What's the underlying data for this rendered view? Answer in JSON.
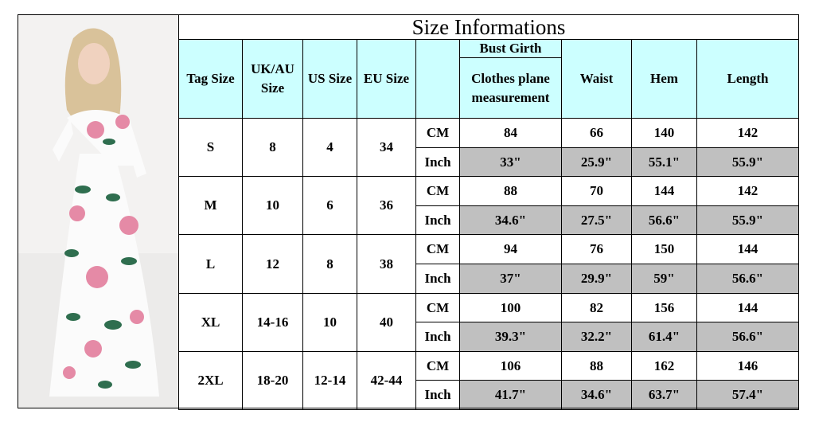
{
  "title": "Size Informations",
  "headers": [
    "Tag Size",
    "UK/AU Size",
    "US Size",
    "EU Size",
    "Bust Girth",
    "Clothes plane measurement",
    "Waist",
    "Hem",
    "Length"
  ],
  "sizes": [
    {
      "tag": "S",
      "uk_au": "8",
      "us": "4",
      "eu": "34",
      "rows": [
        {
          "unit": "CM",
          "values": [
            "84",
            "66",
            "140",
            "142"
          ]
        },
        {
          "unit": "Inch",
          "values": [
            "33\"",
            "25.9\"",
            "55.1\"",
            "55.9\""
          ]
        }
      ]
    },
    {
      "tag": "M",
      "uk_au": "10",
      "us": "6",
      "eu": "36",
      "rows": [
        {
          "unit": "CM",
          "values": [
            "88",
            "70",
            "144",
            "142"
          ]
        },
        {
          "unit": "Inch",
          "values": [
            "34.6\"",
            "27.5\"",
            "56.6\"",
            "55.9\""
          ]
        }
      ]
    },
    {
      "tag": "L",
      "uk_au": "12",
      "us": "8",
      "eu": "38",
      "rows": [
        {
          "unit": "CM",
          "values": [
            "94",
            "76",
            "150",
            "144"
          ]
        },
        {
          "unit": "Inch",
          "values": [
            "37\"",
            "29.9\"",
            "59\"",
            "56.6\""
          ]
        }
      ]
    },
    {
      "tag": "XL",
      "uk_au": "14-16",
      "us": "10",
      "eu": "40",
      "rows": [
        {
          "unit": "CM",
          "values": [
            "100",
            "82",
            "156",
            "144"
          ]
        },
        {
          "unit": "Inch",
          "values": [
            "39.3\"",
            "32.2\"",
            "61.4\"",
            "56.6\""
          ]
        }
      ]
    },
    {
      "tag": "2XL",
      "uk_au": "18-20",
      "us": "12-14",
      "eu": "42-44",
      "rows": [
        {
          "unit": "CM",
          "values": [
            "106",
            "88",
            "162",
            "146"
          ]
        },
        {
          "unit": "Inch",
          "values": [
            "41.7\"",
            "34.6\"",
            "63.7\"",
            "57.4\""
          ]
        }
      ]
    }
  ]
}
